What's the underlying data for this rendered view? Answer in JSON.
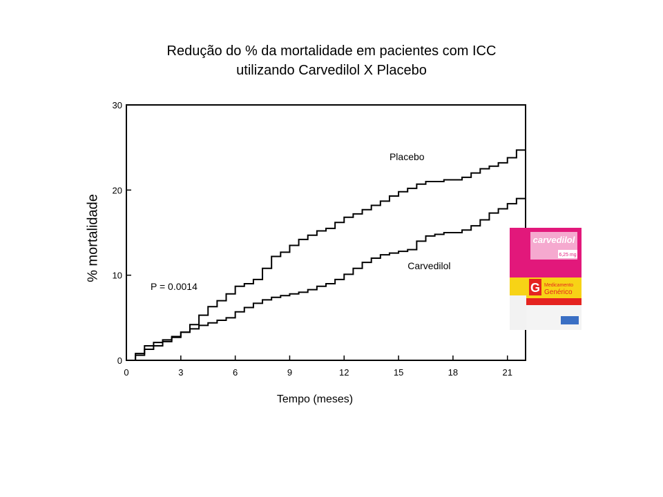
{
  "chart_data": {
    "type": "line",
    "title_line1": "Redução do % da mortalidade em pacientes com ICC",
    "title_line2": "utilizando Carvedilol X Placebo",
    "xlabel": "Tempo (meses)",
    "ylabel": "% mortalidade",
    "xlim": [
      0,
      22
    ],
    "ylim": [
      0,
      30
    ],
    "xticks": [
      0,
      3,
      6,
      9,
      12,
      15,
      18,
      21
    ],
    "yticks": [
      0,
      10,
      20,
      30
    ],
    "grid": false,
    "annotation": "P = 0.0014",
    "series": [
      {
        "name": "Placebo",
        "color": "#000000",
        "x": [
          0,
          0.5,
          1,
          1.5,
          2,
          2.5,
          3,
          3.5,
          4,
          4.5,
          5,
          5.5,
          6,
          6.5,
          7,
          7.5,
          8,
          8.5,
          9,
          9.5,
          10,
          10.5,
          11,
          11.5,
          12,
          12.5,
          13,
          13.5,
          14,
          14.5,
          15,
          15.5,
          16,
          16.5,
          17,
          17.5,
          18,
          18.5,
          19,
          19.5,
          20,
          20.5,
          21,
          21.5,
          22
        ],
        "y": [
          0,
          0.6,
          1.3,
          1.7,
          2.2,
          2.7,
          3.3,
          4.2,
          5.3,
          6.3,
          7.0,
          7.8,
          8.7,
          9.0,
          9.5,
          10.8,
          12.2,
          12.7,
          13.5,
          14.2,
          14.7,
          15.2,
          15.5,
          16.2,
          16.8,
          17.2,
          17.7,
          18.2,
          18.7,
          19.3,
          19.8,
          20.2,
          20.7,
          21.0,
          21.0,
          21.2,
          21.2,
          21.5,
          22.0,
          22.5,
          22.8,
          23.2,
          23.8,
          24.7,
          24.7
        ]
      },
      {
        "name": "Carvedilol",
        "color": "#000000",
        "x": [
          0,
          0.5,
          1,
          1.5,
          2,
          2.5,
          3,
          3.5,
          4,
          4.5,
          5,
          5.5,
          6,
          6.5,
          7,
          7.5,
          8,
          8.5,
          9,
          9.5,
          10,
          10.5,
          11,
          11.5,
          12,
          12.5,
          13,
          13.5,
          14,
          14.5,
          15,
          15.5,
          16,
          16.5,
          17,
          17.5,
          18,
          18.5,
          19,
          19.5,
          20,
          20.5,
          21,
          21.5,
          22
        ],
        "y": [
          0,
          0.8,
          1.7,
          2.1,
          2.4,
          2.8,
          3.3,
          3.7,
          4.1,
          4.4,
          4.7,
          5.0,
          5.7,
          6.2,
          6.7,
          7.1,
          7.4,
          7.6,
          7.8,
          8.0,
          8.3,
          8.7,
          9.0,
          9.5,
          10.1,
          10.8,
          11.5,
          12.0,
          12.4,
          12.6,
          12.8,
          13.0,
          14.0,
          14.6,
          14.8,
          15.0,
          15.0,
          15.3,
          15.8,
          16.5,
          17.3,
          17.8,
          18.4,
          19.0,
          19.0
        ]
      }
    ]
  },
  "product_box": {
    "brand": "carvedilol",
    "dose": "6,25 mg",
    "letter": "G",
    "line1": "Medicamento",
    "line2": "Genérico",
    "colors": {
      "pink": "#e2187b",
      "yellow": "#f7d316",
      "red": "#e52420",
      "white": "#ffffff"
    }
  }
}
